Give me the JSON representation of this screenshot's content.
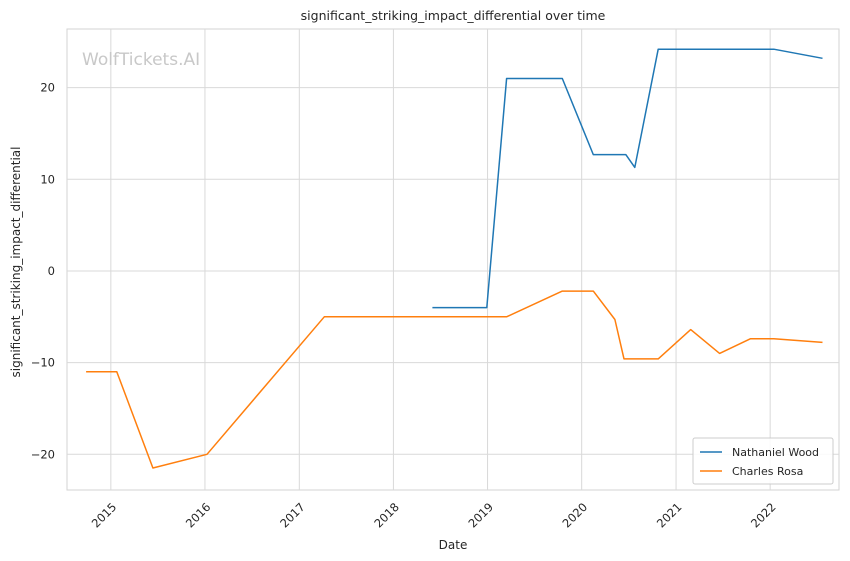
{
  "chart_data": {
    "type": "line",
    "title": "significant_striking_impact_differential over time",
    "xlabel": "Date",
    "ylabel": "significant_striking_impact_differential",
    "watermark": "WolfTickets.AI",
    "x_ticks": [
      "2015",
      "2016",
      "2017",
      "2018",
      "2019",
      "2020",
      "2021",
      "2022"
    ],
    "y_ticks": [
      "−20",
      "−10",
      "0",
      "10",
      "20"
    ],
    "xlim": [
      "2014-07-15",
      "2022-09-25"
    ],
    "ylim": [
      -23.9,
      26.4
    ],
    "grid": true,
    "legend_position": "lower-right",
    "series": [
      {
        "name": "Nathaniel Wood",
        "color": "#1f77b4",
        "points": [
          [
            "2018-06-01",
            -4.0
          ],
          [
            "2018-12-29",
            -4.0
          ],
          [
            "2019-03-16",
            21.0
          ],
          [
            "2019-10-18",
            21.0
          ],
          [
            "2020-02-15",
            12.7
          ],
          [
            "2020-06-20",
            12.7
          ],
          [
            "2020-07-25",
            11.3
          ],
          [
            "2020-10-24",
            24.2
          ],
          [
            "2022-01-15",
            24.2
          ],
          [
            "2022-07-23",
            23.2
          ]
        ]
      },
      {
        "name": "Charles Rosa",
        "color": "#ff7f0e",
        "points": [
          [
            "2014-09-27",
            -11.0
          ],
          [
            "2015-01-24",
            -11.0
          ],
          [
            "2015-06-13",
            -21.5
          ],
          [
            "2016-01-09",
            -20.0
          ],
          [
            "2017-04-08",
            -5.0
          ],
          [
            "2019-03-16",
            -5.0
          ],
          [
            "2019-10-18",
            -2.2
          ],
          [
            "2020-02-15",
            -2.2
          ],
          [
            "2020-05-09",
            -5.3
          ],
          [
            "2020-06-13",
            -9.6
          ],
          [
            "2020-10-24",
            -9.6
          ],
          [
            "2021-02-27",
            -6.4
          ],
          [
            "2021-06-19",
            -9.0
          ],
          [
            "2021-10-16",
            -7.4
          ],
          [
            "2022-01-15",
            -7.4
          ],
          [
            "2022-07-23",
            -7.8
          ]
        ]
      }
    ]
  }
}
